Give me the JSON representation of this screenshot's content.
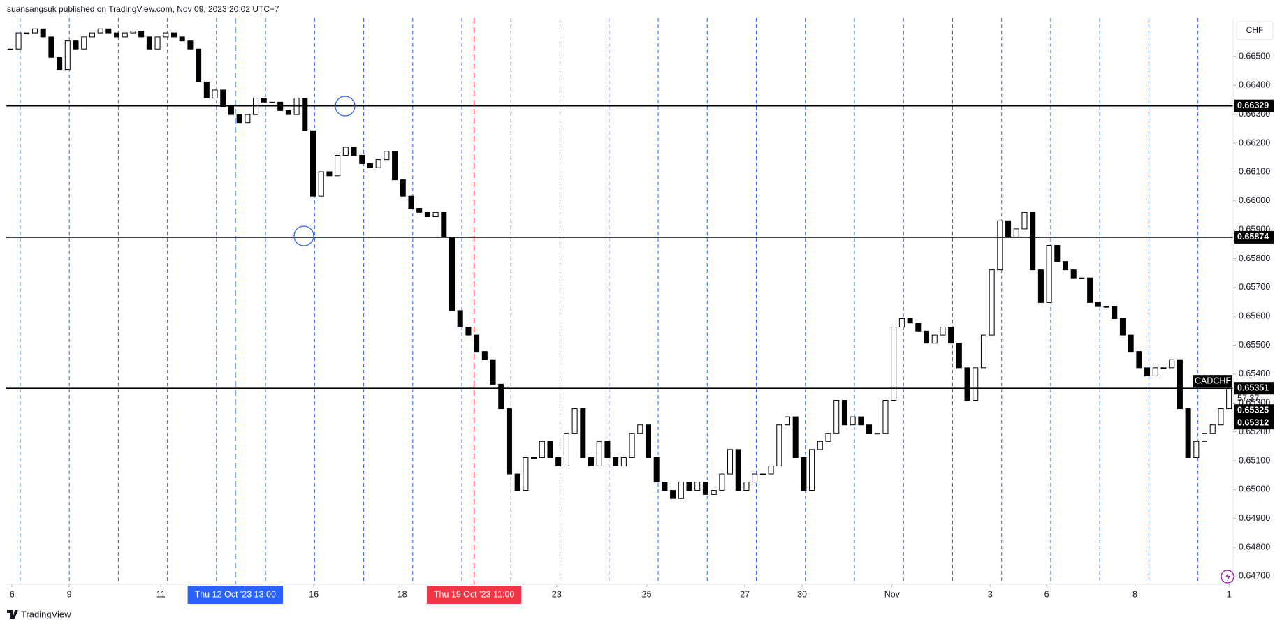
{
  "header": {
    "byline": "suansangsuk published on TradingView.com, Nov 09, 2023 20:02 UTC+7"
  },
  "currency_button": "CHF",
  "footer": {
    "brand": "TradingView"
  },
  "chart_data": {
    "type": "candlestick",
    "symbol": "CADCHF",
    "up_color": "#ffffff",
    "down_color": "#000000",
    "values": [
      0.66526,
      0.66582,
      0.66582,
      0.66596,
      0.66568,
      0.66497,
      0.66455,
      0.66554,
      0.66526,
      0.66568,
      0.66582,
      0.66596,
      0.66582,
      0.66568,
      0.66582,
      0.66588,
      0.66568,
      0.66526,
      0.66568,
      0.66582,
      0.66568,
      0.66554,
      0.66526,
      0.66412,
      0.66356,
      0.66384,
      0.66327,
      0.66299,
      0.66271,
      0.66299,
      0.66356,
      0.66342,
      0.66342,
      0.66313,
      0.66299,
      0.66356,
      0.66243,
      0.66016,
      0.66101,
      0.66087,
      0.66158,
      0.66186,
      0.66158,
      0.66129,
      0.66115,
      0.66143,
      0.66172,
      0.66073,
      0.66016,
      0.65974,
      0.6596,
      0.65945,
      0.6596,
      0.65875,
      0.6562,
      0.65563,
      0.65535,
      0.65478,
      0.6545,
      0.65365,
      0.6528,
      0.65054,
      0.64997,
      0.65111,
      0.65111,
      0.65167,
      0.65111,
      0.65082,
      0.65195,
      0.6528,
      0.65111,
      0.65082,
      0.65167,
      0.65111,
      0.65082,
      0.65111,
      0.65195,
      0.65224,
      0.65111,
      0.65026,
      0.64997,
      0.64969,
      0.65026,
      0.64997,
      0.65026,
      0.64983,
      0.64997,
      0.65054,
      0.65139,
      0.64997,
      0.65026,
      0.65054,
      0.65054,
      0.65082,
      0.65224,
      0.65252,
      0.65111,
      0.64997,
      0.65139,
      0.65167,
      0.65195,
      0.65309,
      0.65224,
      0.65252,
      0.65224,
      0.65195,
      0.65195,
      0.65309,
      0.65563,
      0.65592,
      0.65577,
      0.65549,
      0.65507,
      0.65535,
      0.65563,
      0.65507,
      0.65422,
      0.65309,
      0.65422,
      0.65535,
      0.65761,
      0.65931,
      0.65875,
      0.65903,
      0.6596,
      0.65761,
      0.65648,
      0.65846,
      0.6579,
      0.65761,
      0.65733,
      0.65733,
      0.65648,
      0.65634,
      0.65634,
      0.65592,
      0.65535,
      0.65478,
      0.65422,
      0.65394,
      0.65422,
      0.65422,
      0.6545,
      0.6528,
      0.65111,
      0.65167,
      0.65195,
      0.65224,
      0.6528,
      0.65351
    ],
    "xlim": [
      0,
      150
    ],
    "xticks": [
      {
        "value": 0.7,
        "label": "6"
      },
      {
        "value": 7.7,
        "label": "9"
      },
      {
        "value": 18.9,
        "label": "11"
      },
      {
        "value": 28,
        "label": "Thu 12 Oct '23   13:00",
        "color": "#2962ff"
      },
      {
        "value": 37.6,
        "label": "16"
      },
      {
        "value": 48.4,
        "label": "18"
      },
      {
        "value": 57.2,
        "label": "Thu 19 Oct '23   11:00",
        "color": "#f23645"
      },
      {
        "value": 67.3,
        "label": "23"
      },
      {
        "value": 78.3,
        "label": "25"
      },
      {
        "value": 90.3,
        "label": "27"
      },
      {
        "value": 97.3,
        "label": "30"
      },
      {
        "value": 108.3,
        "label": "Nov"
      },
      {
        "value": 120.3,
        "label": "3"
      },
      {
        "value": 127.2,
        "label": "6"
      },
      {
        "value": 138,
        "label": "8"
      },
      {
        "value": 149.5,
        "label": "1"
      }
    ],
    "ylim": [
      0.64672,
      0.66633
    ],
    "yticks": [
      {
        "value": 0.647,
        "label": "0.64700"
      },
      {
        "value": 0.648,
        "label": "0.64800"
      },
      {
        "value": 0.649,
        "label": "0.64900"
      },
      {
        "value": 0.65,
        "label": "0.65000"
      },
      {
        "value": 0.651,
        "label": "0.65100"
      },
      {
        "value": 0.652,
        "label": "0.65200"
      },
      {
        "value": 0.653,
        "label": "0.65300"
      },
      {
        "value": 0.654,
        "label": "0.65400"
      },
      {
        "value": 0.655,
        "label": "0.65500"
      },
      {
        "value": 0.656,
        "label": "0.65600"
      },
      {
        "value": 0.657,
        "label": "0.65700"
      },
      {
        "value": 0.658,
        "label": "0.65800"
      },
      {
        "value": 0.659,
        "label": "0.65900"
      },
      {
        "value": 0.66,
        "label": "0.66000"
      },
      {
        "value": 0.661,
        "label": "0.66100"
      },
      {
        "value": 0.662,
        "label": "0.66200"
      },
      {
        "value": 0.663,
        "label": "0.66300"
      },
      {
        "value": 0.664,
        "label": "0.66400"
      },
      {
        "value": 0.665,
        "label": "0.66500"
      }
    ],
    "levels": [
      0.66329,
      0.65874,
      0.65351
    ],
    "countdown": "57:37",
    "extra_prices": [
      0.65325,
      0.65312
    ]
  }
}
